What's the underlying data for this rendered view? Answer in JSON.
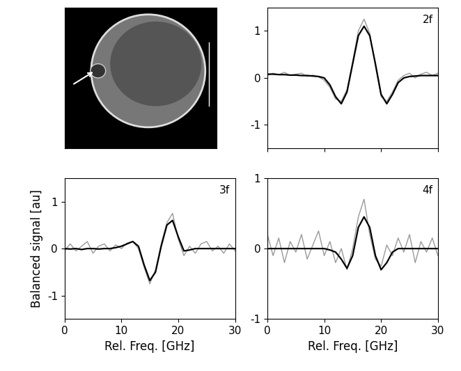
{
  "chart_data": [
    {
      "type": "line",
      "title": "2f",
      "tick_labels": "y",
      "x": [
        0,
        1,
        2,
        3,
        4,
        5,
        6,
        7,
        8,
        9,
        10,
        11,
        12,
        13,
        14,
        15,
        16,
        17,
        18,
        19,
        20,
        21,
        22,
        23,
        24,
        25,
        26,
        27,
        28,
        29,
        30
      ],
      "series": [
        {
          "color": "#999999",
          "values": [
            0.05,
            0.1,
            0.07,
            0.12,
            0.05,
            0.08,
            0.1,
            0.03,
            0.06,
            0.02,
            -0.05,
            -0.2,
            -0.45,
            -0.5,
            -0.25,
            0.35,
            1.0,
            1.25,
            0.95,
            0.25,
            -0.4,
            -0.5,
            -0.3,
            -0.05,
            0.05,
            0.1,
            0.0,
            0.08,
            0.12,
            0.05,
            0.1
          ]
        },
        {
          "color": "#000000",
          "values": [
            0.08,
            0.08,
            0.07,
            0.07,
            0.06,
            0.06,
            0.05,
            0.05,
            0.04,
            0.03,
            0.0,
            -0.15,
            -0.4,
            -0.55,
            -0.3,
            0.3,
            0.9,
            1.1,
            0.9,
            0.3,
            -0.35,
            -0.55,
            -0.35,
            -0.1,
            0.0,
            0.03,
            0.04,
            0.05,
            0.05,
            0.05,
            0.05
          ]
        }
      ],
      "xlim": [
        0,
        30
      ],
      "xticks": [
        0,
        10,
        20,
        30
      ],
      "ylim": [
        -1.5,
        1.5
      ],
      "yticks": [
        -1,
        0,
        1
      ]
    },
    {
      "type": "line",
      "title": "3f",
      "x_label": "Rel. Freq. [GHz]",
      "y_label": "Balanced signal [au]",
      "x": [
        0,
        1,
        2,
        3,
        4,
        5,
        6,
        7,
        8,
        9,
        10,
        11,
        12,
        13,
        14,
        15,
        16,
        17,
        18,
        19,
        20,
        21,
        22,
        23,
        24,
        25,
        26,
        27,
        28,
        29,
        30
      ],
      "series": [
        {
          "color": "#999999",
          "values": [
            -0.05,
            0.1,
            -0.05,
            0.05,
            0.15,
            -0.1,
            0.05,
            0.1,
            -0.05,
            0.08,
            0.0,
            0.12,
            0.15,
            0.0,
            -0.4,
            -0.75,
            -0.45,
            0.1,
            0.55,
            0.75,
            0.2,
            -0.15,
            0.05,
            -0.1,
            0.1,
            0.15,
            -0.05,
            0.05,
            -0.1,
            0.1,
            -0.05
          ]
        },
        {
          "color": "#000000",
          "values": [
            0,
            -0.01,
            0,
            -0.02,
            0,
            0,
            -0.01,
            0,
            0,
            0.02,
            0.05,
            0.1,
            0.15,
            0.05,
            -0.35,
            -0.68,
            -0.5,
            0.05,
            0.5,
            0.6,
            0.25,
            -0.05,
            -0.03,
            0,
            0,
            0,
            0,
            0,
            0,
            0,
            0
          ]
        }
      ],
      "xlim": [
        0,
        30
      ],
      "xticks": [
        0,
        10,
        20,
        30
      ],
      "ylim": [
        -1.5,
        1.5
      ],
      "yticks": [
        -1,
        0,
        1
      ]
    },
    {
      "type": "line",
      "title": "4f",
      "x_label": "Rel. Freq. [GHz]",
      "x": [
        0,
        1,
        2,
        3,
        4,
        5,
        6,
        7,
        8,
        9,
        10,
        11,
        12,
        13,
        14,
        15,
        16,
        17,
        18,
        19,
        20,
        21,
        22,
        23,
        24,
        25,
        26,
        27,
        28,
        29,
        30
      ],
      "series": [
        {
          "color": "#999999",
          "values": [
            0.2,
            -0.1,
            0.15,
            -0.2,
            0.1,
            -0.05,
            0.2,
            -0.15,
            0.05,
            0.25,
            -0.1,
            0.1,
            -0.2,
            0.0,
            -0.3,
            0.0,
            0.45,
            0.7,
            0.2,
            -0.15,
            -0.25,
            0.05,
            -0.1,
            0.15,
            -0.05,
            0.2,
            -0.2,
            0.1,
            -0.05,
            0.15,
            -0.1
          ]
        },
        {
          "color": "#000000",
          "values": [
            0,
            0,
            0,
            0,
            0,
            0,
            0,
            0,
            0,
            0,
            0,
            -0.02,
            -0.05,
            -0.15,
            -0.28,
            -0.1,
            0.3,
            0.45,
            0.3,
            -0.1,
            -0.3,
            -0.2,
            -0.05,
            0,
            0,
            0,
            0,
            0,
            0,
            0,
            0
          ]
        }
      ],
      "xlim": [
        0,
        30
      ],
      "xticks": [
        0,
        10,
        20,
        30
      ],
      "ylim": [
        -1,
        1
      ],
      "yticks": [
        -1,
        0,
        1
      ]
    }
  ]
}
